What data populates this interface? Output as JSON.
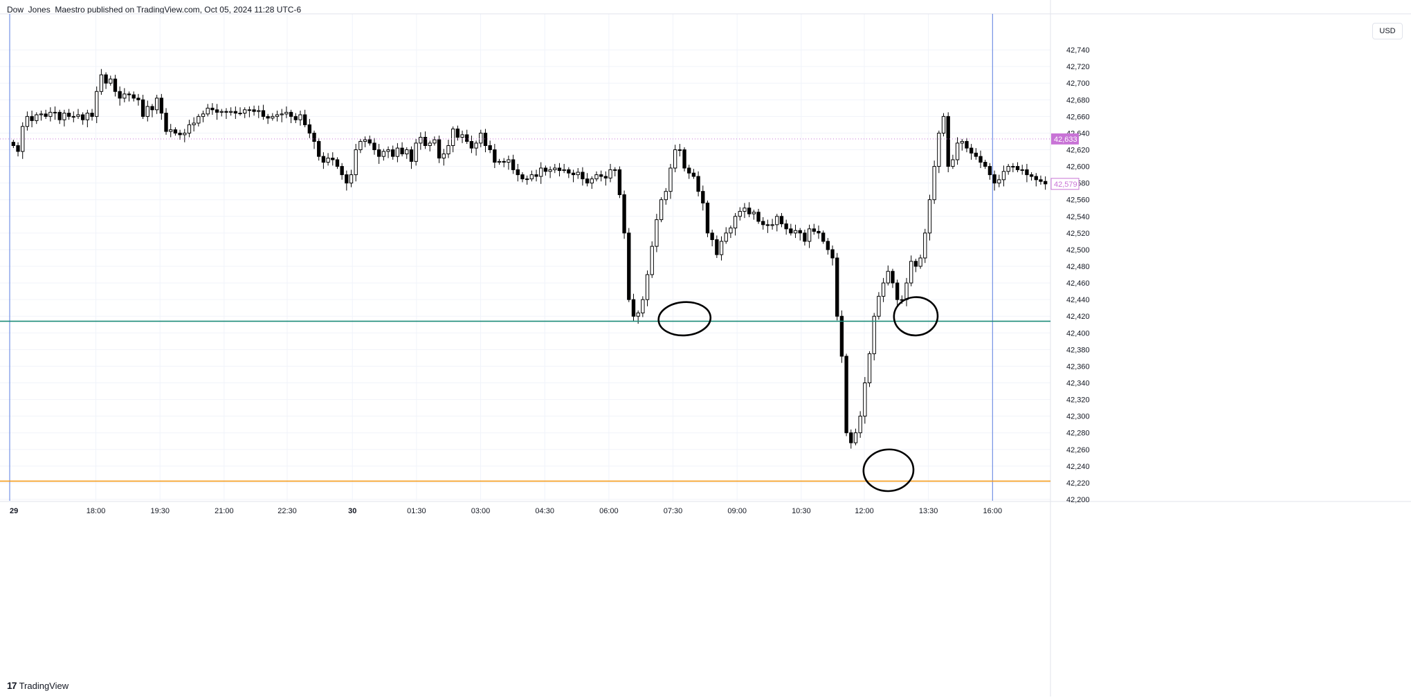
{
  "header": {
    "publisher_line": "Dow_Jones_Maestro published on TradingView.com, Oct 05, 2024 11:28 UTC-6"
  },
  "currency_button": "USD",
  "footer": {
    "logo_mark": "17",
    "brand": "TradingView"
  },
  "colors": {
    "grid": "#f0f3fa",
    "candle": "#000000",
    "support_teal": "#1b8a78",
    "support_orange": "#f59b1c",
    "session_line": "#5a7de0",
    "current_price_bg": "#c873d6",
    "ghost_price": "#c873d6"
  },
  "chart_data": {
    "type": "candlestick",
    "ylim": [
      42200,
      42760
    ],
    "y_ticks": [
      42740,
      42720,
      42700,
      42680,
      42660,
      42640,
      42620,
      42600,
      42580,
      42560,
      42540,
      42520,
      42500,
      42480,
      42460,
      42440,
      42420,
      42400,
      42380,
      42360,
      42340,
      42320,
      42300,
      42280,
      42260,
      42240,
      42220,
      42200
    ],
    "y_tick_labels": [
      "42,740",
      "42,720",
      "42,700",
      "42,680",
      "42,660",
      "42,640",
      "42,620",
      "42,600",
      "42,580",
      "42,560",
      "42,540",
      "42,520",
      "42,500",
      "42,480",
      "42,460",
      "42,440",
      "42,420",
      "42,400",
      "42,380",
      "42,360",
      "42,340",
      "42,320",
      "42,300",
      "42,280",
      "42,260",
      "42,240",
      "42,220",
      "42,200"
    ],
    "x_tick_labels": [
      {
        "label": "29",
        "bold": true,
        "x": 0.0
      },
      {
        "label": "18:00",
        "bold": false,
        "x": 0.082
      },
      {
        "label": "19:30",
        "bold": false,
        "x": 0.143
      },
      {
        "label": "21:00",
        "bold": false,
        "x": 0.204
      },
      {
        "label": "22:30",
        "bold": false,
        "x": 0.264
      },
      {
        "label": "30",
        "bold": true,
        "x": 0.326
      },
      {
        "label": "01:30",
        "bold": false,
        "x": 0.387
      },
      {
        "label": "03:00",
        "bold": false,
        "x": 0.448
      },
      {
        "label": "04:30",
        "bold": false,
        "x": 0.509
      },
      {
        "label": "06:00",
        "bold": false,
        "x": 0.57
      },
      {
        "label": "07:30",
        "bold": false,
        "x": 0.631
      },
      {
        "label": "09:00",
        "bold": false,
        "x": 0.692
      },
      {
        "label": "10:30",
        "bold": false,
        "x": 0.753
      },
      {
        "label": "12:00",
        "bold": false,
        "x": 0.813
      },
      {
        "label": "13:30",
        "bold": false,
        "x": 0.874
      },
      {
        "label": "16:00",
        "bold": false,
        "x": 0.935
      }
    ],
    "current_price_label": "42,633",
    "current_price": 42633,
    "ghost_price_label": "42,579",
    "ghost_price": 42579,
    "horizontal_lines": [
      {
        "name": "teal-support",
        "price": 42414
      },
      {
        "name": "orange-support",
        "price": 42222
      }
    ],
    "session_lines_x": [
      0.0,
      0.935
    ],
    "circles": [
      {
        "cx": 0.642,
        "cy": 42417,
        "rx": 0.025,
        "ry": 15
      },
      {
        "cx": 0.862,
        "cy": 42420,
        "rx": 0.021,
        "ry": 18
      },
      {
        "cx": 0.836,
        "cy": 42235,
        "rx": 0.024,
        "ry": 20
      }
    ],
    "candles_close": [
      42625,
      42618,
      42648,
      42660,
      42655,
      42662,
      42663,
      42660,
      42665,
      42665,
      42656,
      42664,
      42660,
      42660,
      42662,
      42656,
      42664,
      42660,
      42690,
      42710,
      42700,
      42705,
      42690,
      42682,
      42687,
      42686,
      42682,
      42680,
      42660,
      42672,
      42668,
      42682,
      42664,
      42642,
      42644,
      42640,
      42638,
      42640,
      42650,
      42652,
      42660,
      42663,
      42670,
      42668,
      42665,
      42666,
      42665,
      42666,
      42664,
      42664,
      42668,
      42668,
      42666,
      42667,
      42660,
      42658,
      42660,
      42662,
      42663,
      42665,
      42660,
      42656,
      42662,
      42650,
      42640,
      42630,
      42612,
      42605,
      42610,
      42608,
      42600,
      42590,
      42580,
      42590,
      42620,
      42630,
      42632,
      42628,
      42620,
      42612,
      42618,
      42620,
      42612,
      42622,
      42615,
      42620,
      42606,
      42628,
      42635,
      42625,
      42628,
      42632,
      42610,
      42615,
      42625,
      42645,
      42635,
      42638,
      42630,
      42622,
      42628,
      42640,
      42625,
      42620,
      42605,
      42606,
      42605,
      42608,
      42596,
      42590,
      42585,
      42585,
      42590,
      42588,
      42598,
      42594,
      42596,
      42598,
      42595,
      42596,
      42592,
      42590,
      42593,
      42585,
      42580,
      42585,
      42590,
      42588,
      42586,
      42596,
      42596,
      42566,
      42520,
      42440,
      42420,
      42424,
      42440,
      42470,
      42504,
      42536,
      42560,
      42570,
      42598,
      42620,
      42620,
      42598,
      42592,
      42588,
      42570,
      42556,
      42520,
      42512,
      42494,
      42510,
      42520,
      42526,
      42540,
      42546,
      42550,
      42543,
      42545,
      42534,
      42530,
      42529,
      42530,
      42540,
      42531,
      42525,
      42520,
      42523,
      42520,
      42510,
      42525,
      42522,
      42520,
      42510,
      42500,
      42490,
      42420,
      42372,
      42280,
      42268,
      42280,
      42300,
      42340,
      42375,
      42420,
      42444,
      42460,
      42474,
      42460,
      42440,
      42440,
      42460,
      42486,
      42480,
      42490,
      42520,
      42560,
      42600,
      42640,
      42660,
      42600,
      42608,
      42628,
      42630,
      42622,
      42616,
      42612,
      42605,
      42600,
      42590,
      42580,
      42584,
      42594,
      42600,
      42600,
      42596,
      42596,
      42590,
      42588,
      42584,
      42582,
      42579
    ]
  }
}
